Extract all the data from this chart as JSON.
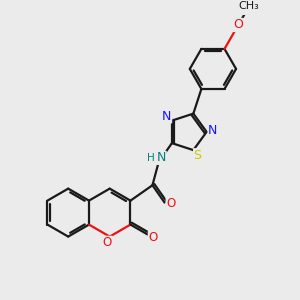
{
  "bg_color": "#ebebeb",
  "bond_color": "#1a1a1a",
  "N_color": "#1414ff",
  "O_color": "#ee1111",
  "S_color": "#cccc00",
  "NH_color": "#008080",
  "line_width": 1.6,
  "figsize": [
    3.0,
    3.0
  ],
  "dpi": 100,
  "xlim": [
    0,
    10
  ],
  "ylim": [
    0,
    10
  ]
}
